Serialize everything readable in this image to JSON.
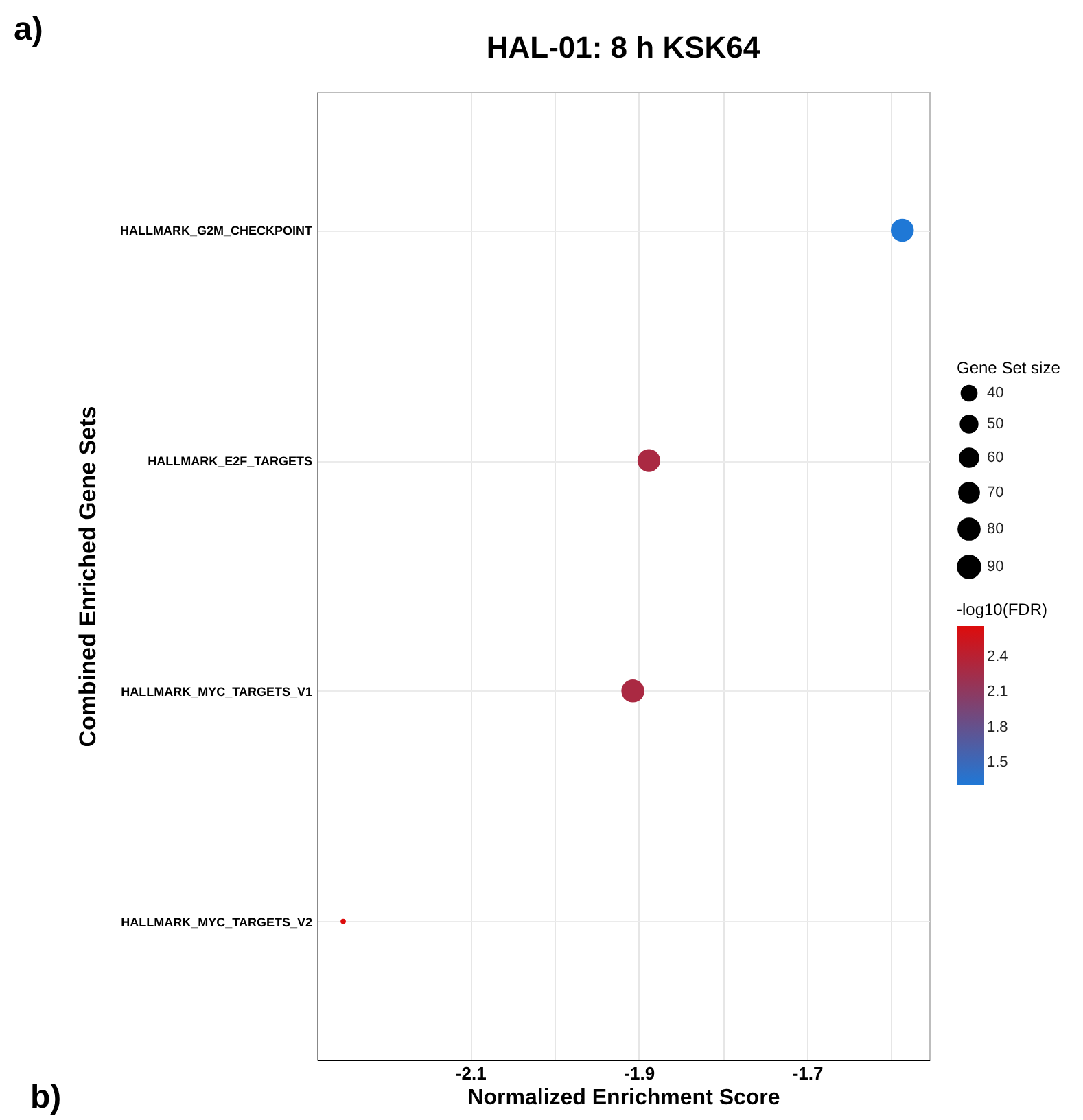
{
  "chart_data": {
    "type": "bubble",
    "title": "HAL-01: 8 h KSK64",
    "xlabel": "Normalized Enrichment Score",
    "ylabel": "Combined Enriched Gene Sets",
    "orientation": "horizontal",
    "categories": [
      "HALLMARK_G2M_CHECKPOINT",
      "HALLMARK_E2F_TARGETS",
      "HALLMARK_MYC_TARGETS_V1",
      "HALLMARK_MYC_TARGETS_V2"
    ],
    "values": [
      -1.587,
      -1.888,
      -1.907,
      -2.251
    ],
    "sizes": [
      95,
      93,
      95,
      5
    ],
    "size_legend": [
      40,
      50,
      60,
      70,
      80,
      90
    ],
    "legend_title": "Gene Set size",
    "cvalues": [
      1.31,
      2.3,
      2.3,
      2.66
    ],
    "clim": [
      1.31,
      2.66
    ],
    "cticks": [
      1.5,
      1.8,
      2.1,
      2.4
    ],
    "clabel": "-log10(FDR)",
    "xlim": [
      -2.282,
      -1.555
    ],
    "xticks": [
      -2.1,
      {
        "value": -2.0,
        "label": null
      },
      -1.9,
      {
        "value": -1.8,
        "label": null
      },
      -1.7,
      {
        "value": -1.6,
        "label": null
      }
    ],
    "grid": true,
    "annotations": [
      "a)",
      "b)"
    ]
  }
}
